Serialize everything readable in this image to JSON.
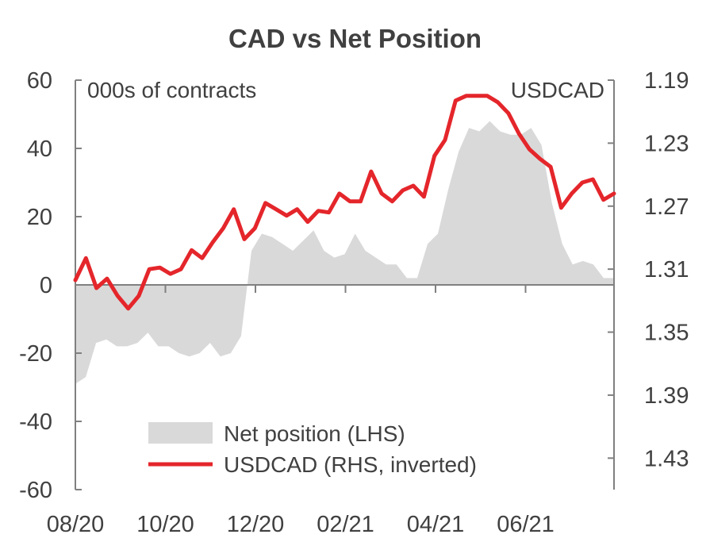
{
  "chart_data": {
    "type": "line",
    "title": "CAD vs Net Position",
    "left_axis": {
      "unit_label": "000s of contracts",
      "range": [
        -60,
        60
      ],
      "ticks": [
        60,
        40,
        20,
        0,
        -20,
        -40,
        -60
      ]
    },
    "right_axis": {
      "unit_label": "USDCAD",
      "range": [
        1.19,
        1.45
      ],
      "inverted": true,
      "ticks": [
        1.19,
        1.23,
        1.27,
        1.31,
        1.35,
        1.39,
        1.43
      ]
    },
    "x_labels": [
      "08/20",
      "10/20",
      "12/20",
      "02/21",
      "04/21",
      "06/21"
    ],
    "series": [
      {
        "name": "Net position (LHS)",
        "kind": "area",
        "axis": "left",
        "color": "#d9d9d9",
        "values": [
          -29,
          -27,
          -17,
          -16,
          -18,
          -18,
          -17,
          -14,
          -18,
          -18,
          -20,
          -21,
          -20,
          -17,
          -21,
          -20,
          -15,
          10,
          15,
          14,
          12,
          10,
          13,
          16,
          10,
          8,
          9,
          15,
          10,
          8,
          6,
          6,
          2,
          2,
          12,
          15,
          28,
          39,
          46,
          45,
          48,
          45,
          44,
          44,
          46,
          41,
          24,
          12,
          6,
          7,
          6,
          2,
          2
        ]
      },
      {
        "name": "USDCAD (RHS, inverted)",
        "kind": "line",
        "axis": "right",
        "color": "#e4262b",
        "values": [
          1.317,
          1.303,
          1.322,
          1.316,
          1.327,
          1.335,
          1.327,
          1.31,
          1.309,
          1.313,
          1.31,
          1.298,
          1.303,
          1.293,
          1.284,
          1.272,
          1.291,
          1.284,
          1.268,
          1.272,
          1.276,
          1.272,
          1.28,
          1.273,
          1.274,
          1.262,
          1.267,
          1.267,
          1.248,
          1.262,
          1.267,
          1.26,
          1.257,
          1.264,
          1.238,
          1.228,
          1.203,
          1.2,
          1.2,
          1.2,
          1.204,
          1.211,
          1.224,
          1.234,
          1.24,
          1.245,
          1.271,
          1.262,
          1.255,
          1.253,
          1.266,
          1.262
        ]
      }
    ]
  }
}
